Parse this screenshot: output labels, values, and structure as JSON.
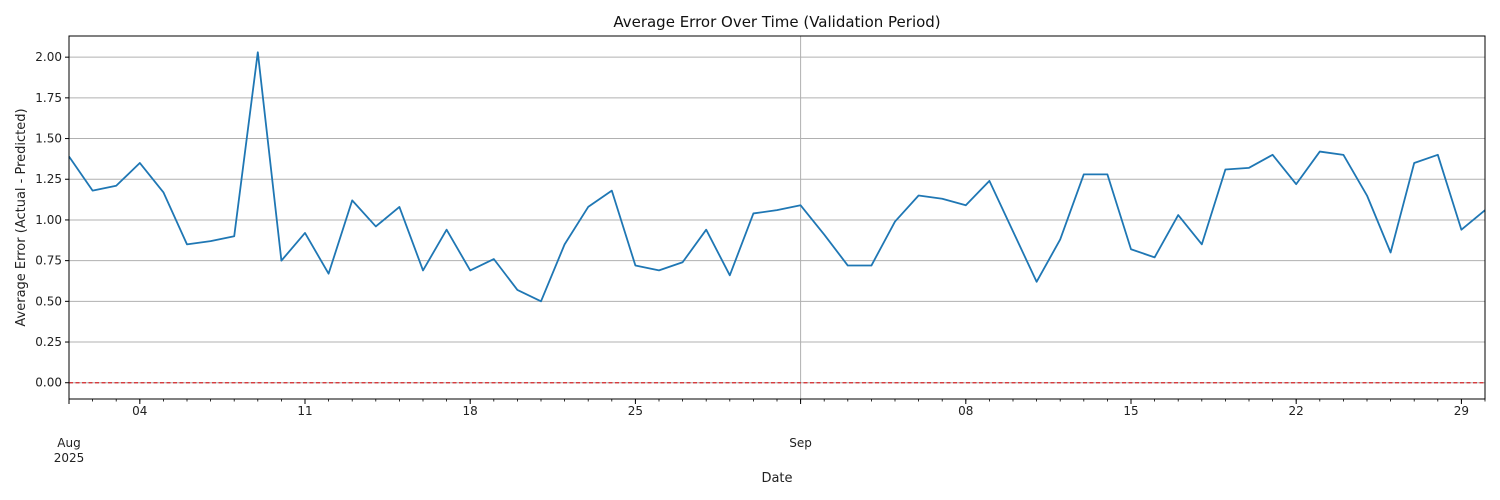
{
  "chart_data": {
    "type": "line",
    "title": "Average Error Over Time (Validation Period)",
    "xlabel": "Date",
    "ylabel": "Average Error (Actual - Predicted)",
    "ylim": [
      -0.1,
      2.13
    ],
    "xlim": [
      "2025-08-01",
      "2025-09-30"
    ],
    "y_ticks": [
      "0.00",
      "0.25",
      "0.50",
      "0.75",
      "1.00",
      "1.25",
      "1.50",
      "1.75",
      "2.00"
    ],
    "x_ticks": [
      {
        "date": "2025-08-01",
        "label": "Aug",
        "sublabel": "2025"
      },
      {
        "date": "2025-08-04",
        "label": "04"
      },
      {
        "date": "2025-08-11",
        "label": "11"
      },
      {
        "date": "2025-08-18",
        "label": "18"
      },
      {
        "date": "2025-08-25",
        "label": "25"
      },
      {
        "date": "2025-09-01",
        "label": "Sep"
      },
      {
        "date": "2025-09-08",
        "label": "08"
      },
      {
        "date": "2025-09-15",
        "label": "15"
      },
      {
        "date": "2025-09-22",
        "label": "22"
      },
      {
        "date": "2025-09-29",
        "label": "29"
      }
    ],
    "grid": "horizontal major lines; vertical line at month boundary",
    "reference_line": {
      "y": 0.0,
      "style": "dashed",
      "color": "#d62728"
    },
    "series": [
      {
        "color": "#1f77b4",
        "x": [
          "2025-08-01",
          "2025-08-02",
          "2025-08-03",
          "2025-08-04",
          "2025-08-05",
          "2025-08-06",
          "2025-08-07",
          "2025-08-08",
          "2025-08-09",
          "2025-08-10",
          "2025-08-11",
          "2025-08-12",
          "2025-08-13",
          "2025-08-14",
          "2025-08-15",
          "2025-08-16",
          "2025-08-17",
          "2025-08-18",
          "2025-08-19",
          "2025-08-20",
          "2025-08-21",
          "2025-08-22",
          "2025-08-23",
          "2025-08-24",
          "2025-08-25",
          "2025-08-26",
          "2025-08-27",
          "2025-08-28",
          "2025-08-29",
          "2025-08-30",
          "2025-08-31",
          "2025-09-01",
          "2025-09-02",
          "2025-09-03",
          "2025-09-04",
          "2025-09-05",
          "2025-09-06",
          "2025-09-07",
          "2025-09-08",
          "2025-09-09",
          "2025-09-10",
          "2025-09-11",
          "2025-09-12",
          "2025-09-13",
          "2025-09-14",
          "2025-09-15",
          "2025-09-16",
          "2025-09-17",
          "2025-09-18",
          "2025-09-19",
          "2025-09-20",
          "2025-09-21",
          "2025-09-22",
          "2025-09-23",
          "2025-09-24",
          "2025-09-25",
          "2025-09-26",
          "2025-09-27",
          "2025-09-28",
          "2025-09-29",
          "2025-09-30"
        ],
        "values": [
          1.39,
          1.18,
          1.21,
          1.35,
          1.17,
          0.85,
          0.87,
          0.9,
          2.03,
          0.75,
          0.92,
          0.67,
          1.12,
          0.96,
          1.08,
          0.69,
          0.94,
          0.69,
          0.76,
          0.57,
          0.5,
          0.85,
          1.08,
          1.18,
          0.72,
          0.69,
          0.74,
          0.94,
          0.66,
          1.04,
          1.06,
          1.09,
          0.91,
          0.72,
          0.72,
          0.99,
          1.15,
          1.13,
          1.09,
          1.24,
          0.93,
          0.62,
          0.88,
          1.28,
          1.28,
          0.82,
          0.77,
          1.03,
          0.85,
          1.31,
          1.32,
          1.4,
          1.22,
          1.42,
          1.4,
          1.15,
          0.8,
          1.35,
          1.4,
          0.94,
          1.06
        ]
      }
    ]
  }
}
